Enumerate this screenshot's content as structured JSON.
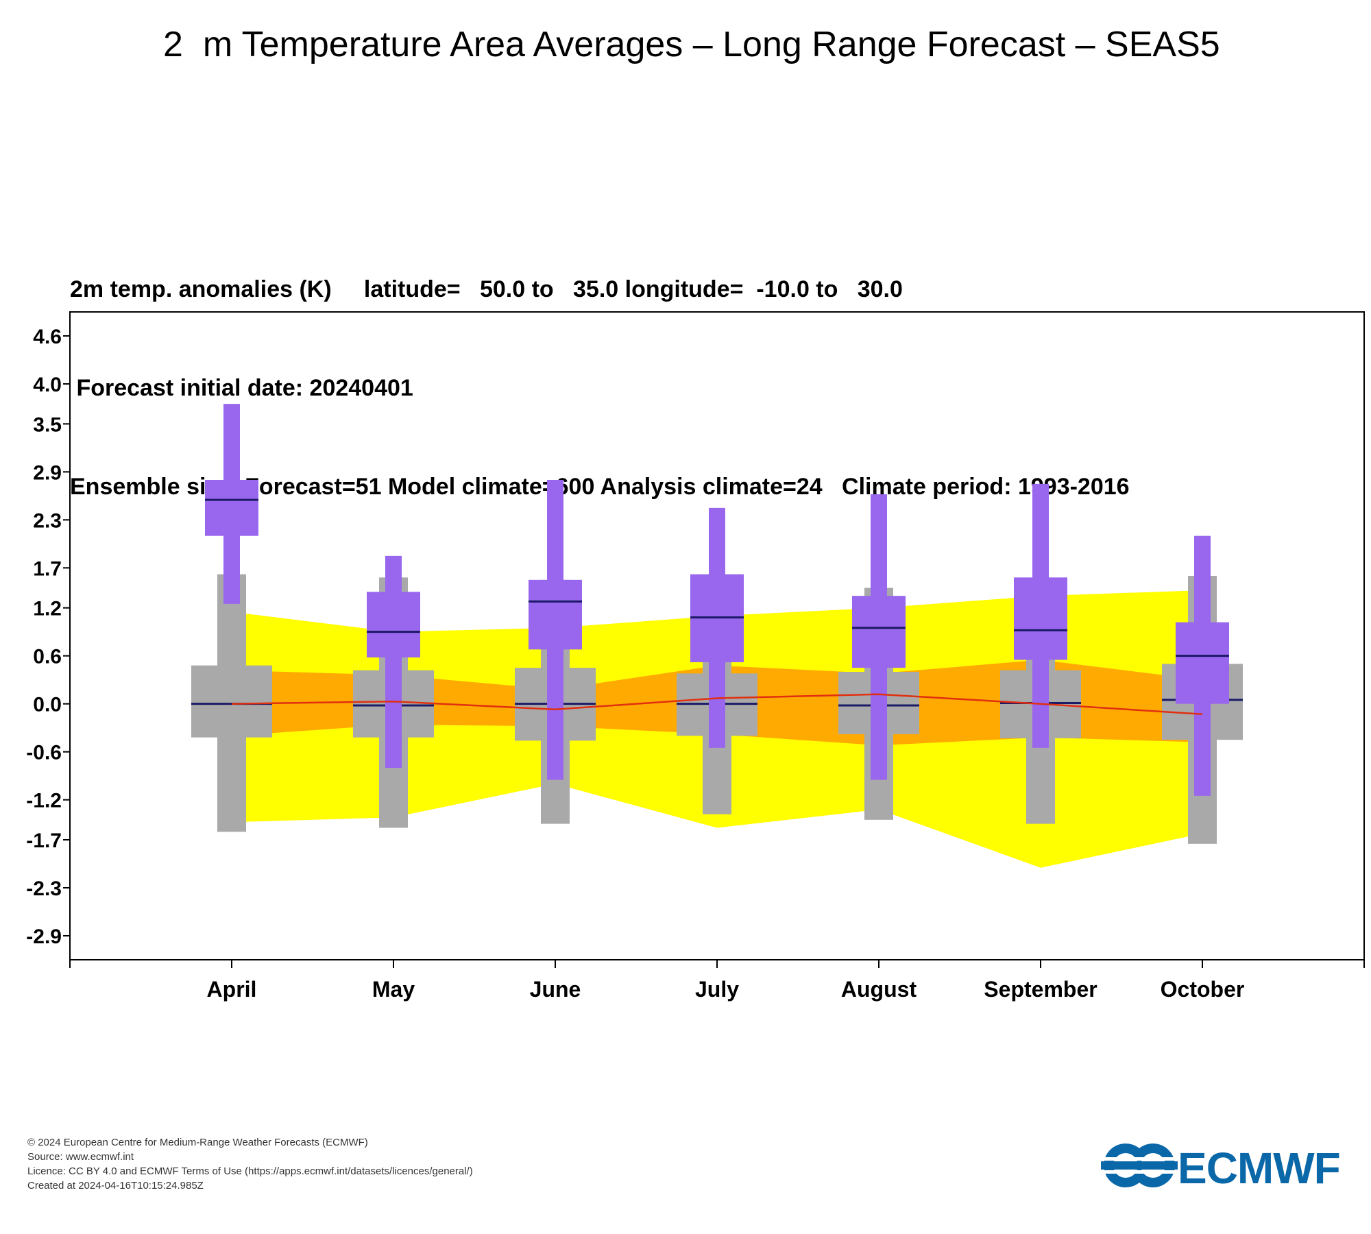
{
  "page": {
    "title": "2  m Temperature Area Averages – Long Range Forecast – SEAS5"
  },
  "header": {
    "line1": "2m temp. anomalies (K)     latitude=   50.0 to   35.0 longitude=  -10.0 to   30.0",
    "line2": " Forecast initial date: 20240401",
    "line3": "Ensemble size: Forecast=51 Model climate=600 Analysis climate=24   Climate period: 1993-2016"
  },
  "colors": {
    "forecast": "#9966ee",
    "model_climate": "#a9a9a9",
    "climate_outer": "#ffff00",
    "climate_inner": "#ffaa00",
    "climate_median": "#e03010",
    "median_line": "#1a1a66"
  },
  "chart_data": {
    "type": "box",
    "title": "",
    "xlabel": "",
    "ylabel": "",
    "ylim": [
      -3.2,
      4.9
    ],
    "yticks": [
      "4.6",
      "4.0",
      "3.5",
      "2.9",
      "2.3",
      "1.7",
      "1.2",
      "0.6",
      "0.0",
      "-0.6",
      "-1.2",
      "-1.7",
      "-2.3",
      "-2.9"
    ],
    "categories": [
      "April",
      "May",
      "June",
      "July",
      "August",
      "September",
      "October"
    ],
    "forecast": [
      {
        "min": 1.25,
        "p25": 2.1,
        "median": 2.55,
        "p75": 2.8,
        "max": 3.75
      },
      {
        "min": -0.8,
        "p25": 0.58,
        "median": 0.9,
        "p75": 1.4,
        "max": 1.85
      },
      {
        "min": -0.95,
        "p25": 0.68,
        "median": 1.28,
        "p75": 1.55,
        "max": 2.8
      },
      {
        "min": -0.55,
        "p25": 0.52,
        "median": 1.08,
        "p75": 1.62,
        "max": 2.45
      },
      {
        "min": -0.95,
        "p25": 0.45,
        "median": 0.95,
        "p75": 1.35,
        "max": 2.62
      },
      {
        "min": -0.55,
        "p25": 0.55,
        "median": 0.92,
        "p75": 1.58,
        "max": 2.75
      },
      {
        "min": -1.15,
        "p25": 0.0,
        "median": 0.6,
        "p75": 1.02,
        "max": 2.1
      }
    ],
    "model_climate": [
      {
        "min": -1.6,
        "p25": -0.42,
        "median": 0.0,
        "p75": 0.48,
        "max": 1.62
      },
      {
        "min": -1.55,
        "p25": -0.42,
        "median": -0.02,
        "p75": 0.42,
        "max": 1.58
      },
      {
        "min": -1.5,
        "p25": -0.46,
        "median": 0.0,
        "p75": 0.45,
        "max": 1.55
      },
      {
        "min": -1.38,
        "p25": -0.4,
        "median": 0.0,
        "p75": 0.38,
        "max": 1.5
      },
      {
        "min": -1.45,
        "p25": -0.38,
        "median": -0.02,
        "p75": 0.4,
        "max": 1.45
      },
      {
        "min": -1.5,
        "p25": -0.43,
        "median": 0.01,
        "p75": 0.42,
        "max": 1.5
      },
      {
        "min": -1.75,
        "p25": -0.45,
        "median": 0.05,
        "p75": 0.5,
        "max": 1.6
      }
    ],
    "analysis_climate": [
      {
        "min": -1.48,
        "p25": -0.4,
        "median": 0.0,
        "p75": 0.42,
        "max": 1.15
      },
      {
        "min": -1.42,
        "p25": -0.26,
        "median": 0.03,
        "p75": 0.36,
        "max": 0.9
      },
      {
        "min": -1.0,
        "p25": -0.28,
        "median": -0.07,
        "p75": 0.18,
        "max": 0.95
      },
      {
        "min": -1.55,
        "p25": -0.38,
        "median": 0.07,
        "p75": 0.48,
        "max": 1.1
      },
      {
        "min": -1.32,
        "p25": -0.52,
        "median": 0.12,
        "p75": 0.38,
        "max": 1.2
      },
      {
        "min": -2.05,
        "p25": -0.42,
        "median": 0.0,
        "p75": 0.55,
        "max": 1.35
      },
      {
        "min": -1.62,
        "p25": -0.48,
        "median": -0.13,
        "p75": 0.3,
        "max": 1.42
      }
    ]
  },
  "footer": {
    "copyright": "© 2024 European Centre for Medium-Range Weather Forecasts (ECMWF)",
    "source": "Source: www.ecmwf.int",
    "licence": "Licence: CC BY 4.0 and ECMWF Terms of Use (https://apps.ecmwf.int/datasets/licences/general/)",
    "created": "Created at 2024-04-16T10:15:24.985Z"
  },
  "logo": {
    "text": "ECMWF",
    "color": "#0a67a8",
    "icon": "ecmwf-logo-icon"
  }
}
